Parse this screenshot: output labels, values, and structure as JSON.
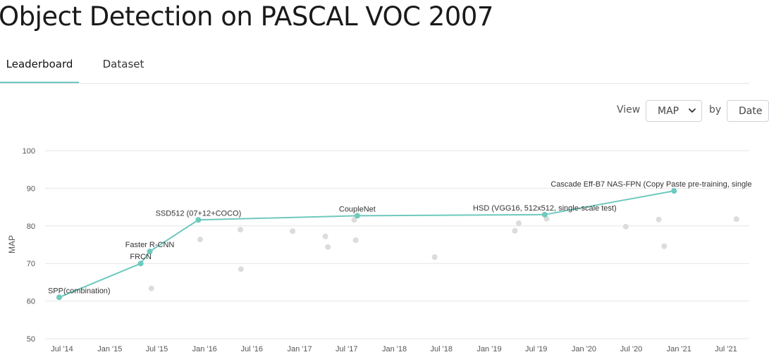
{
  "page": {
    "title": "Object Detection on PASCAL VOC 2007"
  },
  "tabs": [
    {
      "label": "Leaderboard",
      "active": true
    },
    {
      "label": "Dataset",
      "active": false
    }
  ],
  "controls": {
    "view_label": "View",
    "view_value": "MAP",
    "by_label": "by",
    "by_value": "Date"
  },
  "colors": {
    "accent": "#6ec9be",
    "sota_point": "#6ec9be",
    "other_point": "#dcdcdc",
    "grid": "#e6e6e6"
  },
  "chart_data": {
    "type": "scatter",
    "title": "",
    "xlabel": "",
    "ylabel": "MAP",
    "ylim": [
      50,
      100
    ],
    "yticks": [
      50,
      60,
      70,
      80,
      90,
      100
    ],
    "xlim": [
      "2014-05-25",
      "2021-10-20"
    ],
    "xticks": [
      {
        "date": "2014-07-01",
        "label": "Jul '14"
      },
      {
        "date": "2015-01-01",
        "label": "Jan '15"
      },
      {
        "date": "2015-07-01",
        "label": "Jul '15"
      },
      {
        "date": "2016-01-01",
        "label": "Jan '16"
      },
      {
        "date": "2016-07-01",
        "label": "Jul '16"
      },
      {
        "date": "2017-01-01",
        "label": "Jan '17"
      },
      {
        "date": "2017-07-01",
        "label": "Jul '17"
      },
      {
        "date": "2018-01-01",
        "label": "Jan '18"
      },
      {
        "date": "2018-07-01",
        "label": "Jul '18"
      },
      {
        "date": "2019-01-01",
        "label": "Jan '19"
      },
      {
        "date": "2019-07-01",
        "label": "Jul '19"
      },
      {
        "date": "2020-01-01",
        "label": "Jan '20"
      },
      {
        "date": "2020-07-01",
        "label": "Jul '20"
      },
      {
        "date": "2021-01-01",
        "label": "Jan '21"
      },
      {
        "date": "2021-07-01",
        "label": "Jul '21"
      }
    ],
    "grid": true,
    "sota": [
      {
        "label": "SPP(combination)",
        "date": "2014-06-20",
        "map": 61.0
      },
      {
        "label": "FRCN",
        "date": "2015-04-30",
        "map": 70.0
      },
      {
        "label": "Faster R-CNN",
        "date": "2015-06-04",
        "map": 73.2
      },
      {
        "label": "SSD512 (07+12+COCO)",
        "date": "2015-12-08",
        "map": 81.6
      },
      {
        "label": "CoupleNet",
        "date": "2017-08-11",
        "map": 82.7
      },
      {
        "label": "HSD (VGG16, 512x512, single-scale test)",
        "date": "2019-08-03",
        "map": 83.0
      },
      {
        "label": "Cascade Eff-B7 NAS-FPN (Copy Paste pre-training, single",
        "date": "2020-12-13",
        "map": 89.3
      }
    ],
    "others": [
      {
        "date": "2015-06-10",
        "map": 63.4
      },
      {
        "date": "2015-12-15",
        "map": 76.4
      },
      {
        "date": "2016-05-18",
        "map": 79.0
      },
      {
        "date": "2016-05-20",
        "map": 68.5
      },
      {
        "date": "2016-12-05",
        "map": 78.6
      },
      {
        "date": "2017-04-10",
        "map": 77.2
      },
      {
        "date": "2017-04-20",
        "map": 74.4
      },
      {
        "date": "2017-07-30",
        "map": 81.6
      },
      {
        "date": "2017-08-05",
        "map": 76.2
      },
      {
        "date": "2018-06-05",
        "map": 71.7
      },
      {
        "date": "2019-04-10",
        "map": 78.7
      },
      {
        "date": "2019-04-25",
        "map": 80.7
      },
      {
        "date": "2019-08-10",
        "map": 81.9
      },
      {
        "date": "2020-06-10",
        "map": 79.8
      },
      {
        "date": "2020-10-15",
        "map": 81.7
      },
      {
        "date": "2020-11-05",
        "map": 74.6
      },
      {
        "date": "2021-08-10",
        "map": 81.8
      }
    ]
  }
}
